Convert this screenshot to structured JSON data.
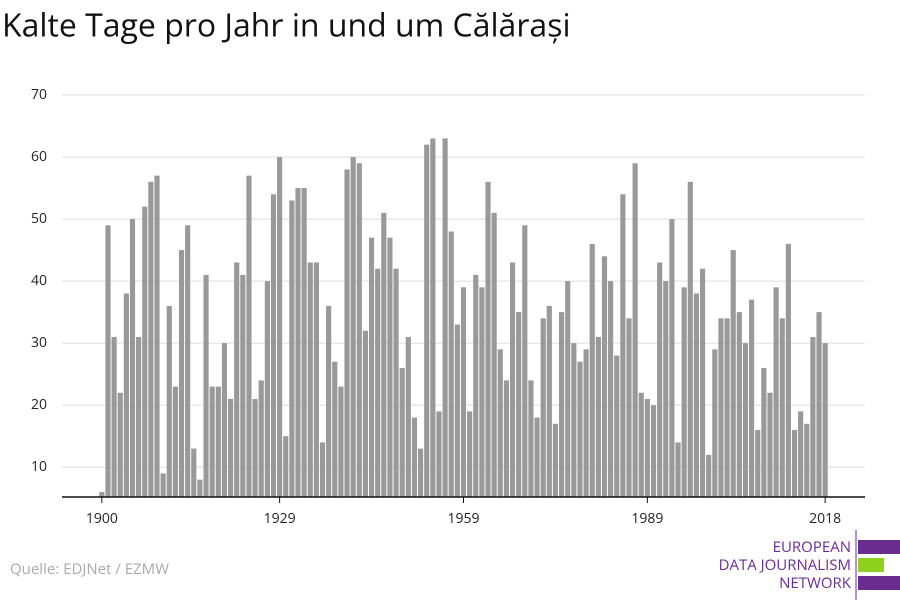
{
  "chart_data": {
    "type": "bar",
    "title": "Kalte Tage pro Jahr in und um Călărași",
    "source": "Quelle: EDJNet / EZMW",
    "logo": [
      "EUROPEAN",
      "DATA JOURNALISM",
      "NETWORK"
    ],
    "x": [
      1900,
      1901,
      1902,
      1903,
      1904,
      1905,
      1906,
      1907,
      1908,
      1909,
      1910,
      1911,
      1912,
      1913,
      1914,
      1915,
      1916,
      1917,
      1918,
      1919,
      1920,
      1921,
      1922,
      1923,
      1924,
      1925,
      1926,
      1927,
      1928,
      1929,
      1930,
      1931,
      1932,
      1933,
      1934,
      1935,
      1936,
      1937,
      1938,
      1939,
      1940,
      1941,
      1942,
      1943,
      1944,
      1945,
      1946,
      1947,
      1948,
      1949,
      1950,
      1951,
      1952,
      1953,
      1954,
      1955,
      1956,
      1957,
      1958,
      1959,
      1960,
      1961,
      1962,
      1963,
      1964,
      1965,
      1966,
      1967,
      1968,
      1969,
      1970,
      1971,
      1972,
      1973,
      1974,
      1975,
      1976,
      1977,
      1978,
      1979,
      1980,
      1981,
      1982,
      1983,
      1984,
      1985,
      1986,
      1987,
      1988,
      1989,
      1990,
      1991,
      1992,
      1993,
      1994,
      1995,
      1996,
      1997,
      1998,
      1999,
      2000,
      2001,
      2002,
      2003,
      2004,
      2005,
      2006,
      2007,
      2008,
      2009,
      2010,
      2011,
      2012,
      2013,
      2014,
      2015,
      2016,
      2017,
      2018
    ],
    "values": [
      6,
      49,
      31,
      22,
      38,
      50,
      31,
      52,
      56,
      57,
      9,
      36,
      23,
      45,
      49,
      13,
      8,
      41,
      23,
      23,
      30,
      21,
      43,
      41,
      57,
      21,
      24,
      40,
      54,
      60,
      15,
      53,
      55,
      55,
      43,
      43,
      14,
      36,
      27,
      23,
      58,
      60,
      59,
      32,
      47,
      42,
      51,
      47,
      42,
      26,
      31,
      18,
      13,
      62,
      63,
      19,
      63,
      48,
      33,
      39,
      19,
      41,
      39,
      56,
      51,
      29,
      24,
      43,
      35,
      49,
      24,
      18,
      34,
      36,
      17,
      35,
      40,
      30,
      27,
      29,
      46,
      31,
      44,
      40,
      28,
      54,
      34,
      59,
      22,
      21,
      20,
      43,
      40,
      50,
      14,
      39,
      56,
      38,
      42,
      12,
      29,
      34,
      34,
      45,
      35,
      30,
      37,
      16,
      26,
      22,
      39,
      34,
      46,
      16,
      19,
      17,
      31,
      35,
      30
    ],
    "color": "#999999",
    "xlim": [
      1893.5,
      2024.5
    ],
    "xticks": [
      1900,
      1929,
      1959,
      1989,
      2018
    ],
    "ylim": [
      5.2,
      70
    ],
    "yticks": [
      10,
      20,
      30,
      40,
      50,
      60,
      70
    ],
    "grid": true
  }
}
